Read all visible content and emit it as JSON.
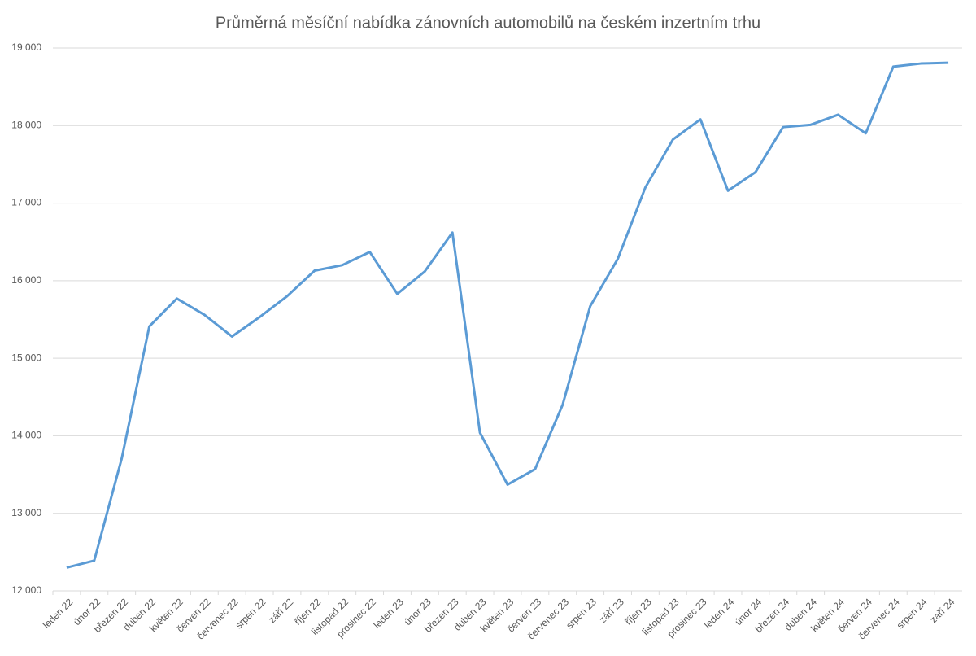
{
  "chart_data": {
    "type": "line",
    "title": "Průměrná měsíční nabídka zánovních automobilů na českém inzertním trhu",
    "categories": [
      "leden 22",
      "únor 22",
      "březen 22",
      "duben 22",
      "květen 22",
      "červen 22",
      "červenec 22",
      "srpen 22",
      "září 22",
      "říjen 22",
      "listopad 22",
      "prosinec 22",
      "leden 23",
      "únor 23",
      "březen 23",
      "duben 23",
      "květen 23",
      "červen 23",
      "červenec 23",
      "srpen 23",
      "září 23",
      "říjen 23",
      "listopad 23",
      "prosinec 23",
      "leden 24",
      "únor 24",
      "březen 24",
      "duben 24",
      "květen 24",
      "červen 24",
      "červenec 24",
      "srpen 24",
      "září 24"
    ],
    "values": [
      12300,
      12390,
      13710,
      15410,
      15770,
      15560,
      15280,
      15530,
      15800,
      16130,
      16200,
      16370,
      15830,
      16120,
      16620,
      14040,
      13370,
      13570,
      14400,
      15670,
      16280,
      17200,
      17820,
      18080,
      17160,
      17400,
      17980,
      18010,
      18140,
      17900,
      18760,
      18800,
      18810
    ],
    "color": "#5b9bd5",
    "ylim": [
      12000,
      19000
    ],
    "yticks": [
      {
        "value": 12000,
        "label": "12 000"
      },
      {
        "value": 13000,
        "label": "13 000"
      },
      {
        "value": 14000,
        "label": "14 000"
      },
      {
        "value": 15000,
        "label": "15 000"
      },
      {
        "value": 16000,
        "label": "16 000"
      },
      {
        "value": 17000,
        "label": "17 000"
      },
      {
        "value": 18000,
        "label": "18 000"
      },
      {
        "value": 19000,
        "label": "19 000"
      }
    ],
    "grid": true
  }
}
